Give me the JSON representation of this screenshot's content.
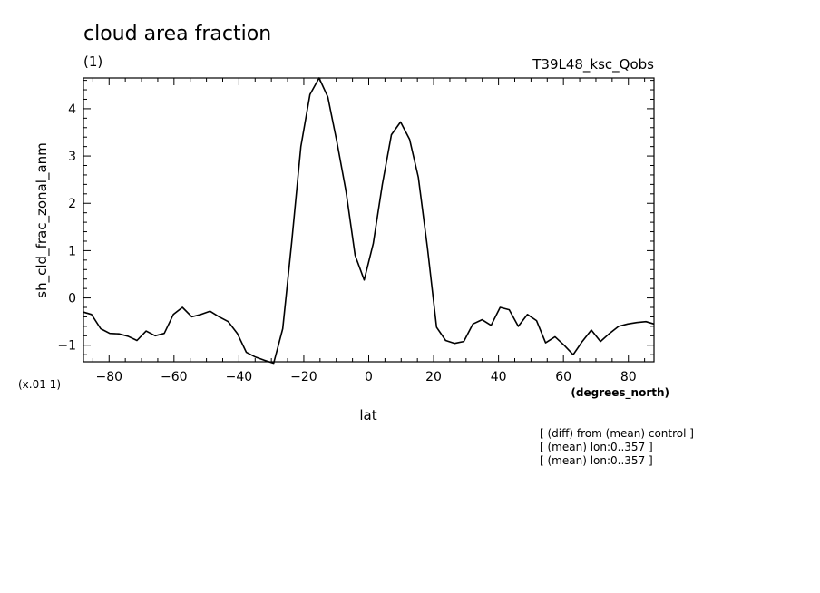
{
  "chart_data": {
    "type": "line",
    "title": "cloud area fraction",
    "subtitle": "(1)",
    "run_label": "T39L48_ksc_Qobs",
    "xlabel": "lat",
    "xunits": "(degrees_north)",
    "ylabel": "sh_cld_frac_zonal_anm",
    "yscale_note": "(x.01 1)",
    "xlim": [
      -87.9,
      87.9
    ],
    "ylim": [
      -1.35,
      4.65
    ],
    "xticks": [
      -80,
      -60,
      -40,
      -20,
      0,
      20,
      40,
      60,
      80
    ],
    "xtick_labels": [
      "−80",
      "−60",
      "−40",
      "−20",
      "0",
      "20",
      "40",
      "60",
      "80"
    ],
    "yticks": [
      -1,
      0,
      1,
      2,
      3,
      4
    ],
    "ytick_labels": [
      "−1",
      "0",
      "1",
      "2",
      "3",
      "4"
    ],
    "grid": false,
    "series": [
      {
        "x": [
          -87.9,
          -85.4,
          -82.6,
          -79.8,
          -77.0,
          -74.2,
          -71.4,
          -68.6,
          -65.8,
          -63.0,
          -60.2,
          -57.4,
          -54.5,
          -51.7,
          -48.9,
          -46.1,
          -43.3,
          -40.5,
          -37.7,
          -34.9,
          -32.1,
          -29.3,
          -26.5,
          -23.7,
          -20.9,
          -18.1,
          -15.3,
          -12.6,
          -9.8,
          -7.0,
          -4.2,
          -1.4,
          1.4,
          4.2,
          7.0,
          9.8,
          12.6,
          15.3,
          18.1,
          20.9,
          23.7,
          26.5,
          29.3,
          32.1,
          34.9,
          37.7,
          40.5,
          43.3,
          46.1,
          48.9,
          51.7,
          54.5,
          57.4,
          60.2,
          63.0,
          65.8,
          68.6,
          71.4,
          74.2,
          77.0,
          79.8,
          82.6,
          85.4,
          87.9
        ],
        "values": [
          -0.3,
          -0.35,
          -0.65,
          -0.75,
          -0.76,
          -0.81,
          -0.9,
          -0.7,
          -0.8,
          -0.75,
          -0.35,
          -0.2,
          -0.4,
          -0.35,
          -0.28,
          -0.4,
          -0.5,
          -0.75,
          -1.15,
          -1.25,
          -1.32,
          -1.38,
          -0.65,
          1.2,
          3.2,
          4.3,
          4.65,
          4.25,
          3.3,
          2.25,
          0.9,
          0.38,
          1.15,
          2.4,
          3.45,
          3.72,
          3.35,
          2.55,
          1.05,
          -0.62,
          -0.9,
          -0.96,
          -0.92,
          -0.55,
          -0.46,
          -0.58,
          -0.2,
          -0.25,
          -0.6,
          -0.35,
          -0.48,
          -0.95,
          -0.82,
          -1.0,
          -1.2,
          -0.92,
          -0.68,
          -0.92,
          -0.75,
          -0.6,
          -0.55,
          -0.52,
          -0.5,
          -0.55
        ]
      }
    ]
  },
  "notes": [
    "[ (diff) from (mean) control ]",
    "[ (mean) lon:0..357 ]",
    "[ (mean) lon:0..357 ]"
  ]
}
